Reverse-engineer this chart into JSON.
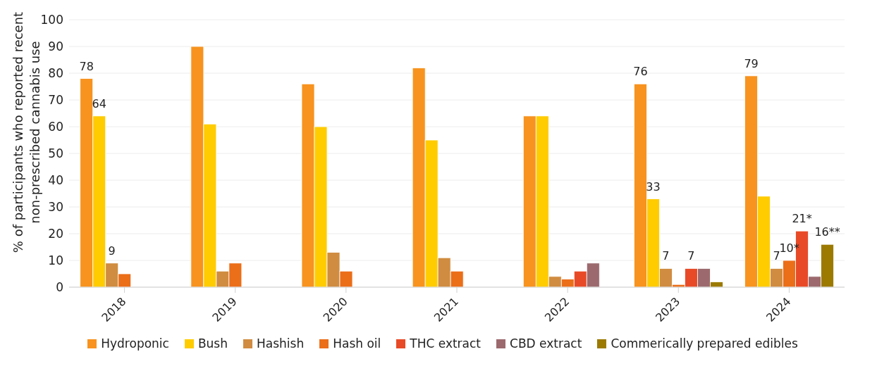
{
  "chart_data": {
    "type": "bar",
    "ylabel": "% of participants who reported recent non-prescribed cannabis use",
    "categories": [
      "2018",
      "2019",
      "2020",
      "2021",
      "2022",
      "2023",
      "2024"
    ],
    "series": [
      {
        "name": "Hydroponic",
        "color": "#f7931e",
        "values": [
          78,
          90,
          76,
          82,
          64,
          76,
          79
        ],
        "value_labels": [
          "78",
          null,
          null,
          null,
          null,
          "76",
          "79"
        ]
      },
      {
        "name": "Bush",
        "color": "#ffcc00",
        "values": [
          64,
          61,
          60,
          55,
          64,
          33,
          34
        ],
        "value_labels": [
          "64",
          null,
          null,
          null,
          null,
          "33",
          null
        ]
      },
      {
        "name": "Hashish",
        "color": "#d08c40",
        "values": [
          9,
          6,
          13,
          11,
          4,
          7,
          7
        ],
        "value_labels": [
          "9",
          null,
          null,
          null,
          null,
          "7",
          "7"
        ]
      },
      {
        "name": "Hash oil",
        "color": "#eb6e19",
        "values": [
          5,
          9,
          6,
          6,
          3,
          1,
          10
        ],
        "value_labels": [
          null,
          null,
          null,
          null,
          null,
          null,
          "10*"
        ]
      },
      {
        "name": "THC extract",
        "color": "#e84a27",
        "values": [
          null,
          null,
          null,
          null,
          6,
          7,
          21
        ],
        "value_labels": [
          null,
          null,
          null,
          null,
          null,
          "7",
          "21*"
        ]
      },
      {
        "name": "CBD extract",
        "color": "#9c6a6e",
        "values": [
          null,
          null,
          null,
          null,
          9,
          7,
          4
        ]
      },
      {
        "name": "Commerically prepared edibles",
        "color": "#9c7a00",
        "values": [
          null,
          null,
          null,
          null,
          null,
          2,
          16
        ],
        "value_labels": [
          null,
          null,
          null,
          null,
          null,
          null,
          "16**"
        ]
      }
    ],
    "ylim": [
      0,
      100
    ],
    "yticks": [
      0,
      10,
      20,
      30,
      40,
      50,
      60,
      70,
      80,
      90,
      100
    ],
    "grid": "y",
    "legend": "bottom"
  }
}
